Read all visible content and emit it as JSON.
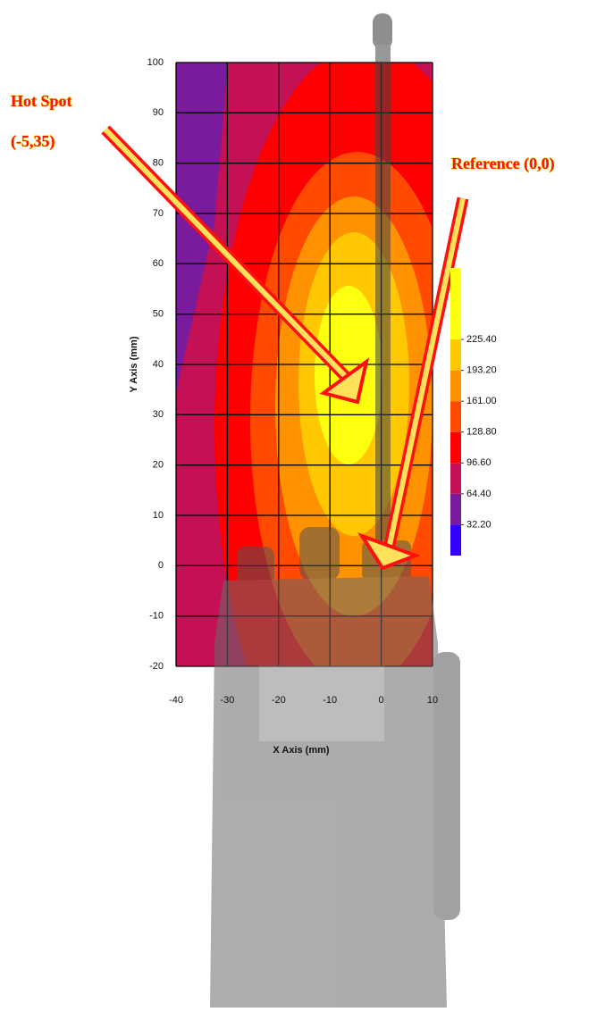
{
  "chart_data": {
    "type": "contour",
    "x_label": "X Axis (mm)",
    "y_label": "Y Axis (mm)",
    "xlim": [
      -40,
      10
    ],
    "xticks": [
      -40,
      -30,
      -20,
      -10,
      0,
      10
    ],
    "ylim": [
      -20,
      100
    ],
    "yticks": [
      -20,
      -10,
      0,
      10,
      20,
      30,
      40,
      50,
      60,
      70,
      80,
      90,
      100
    ],
    "grid": true,
    "colorbar": {
      "lim": [
        0,
        300
      ],
      "ticks": [
        {
          "value": 32.2,
          "label": "32.20"
        },
        {
          "value": 64.4,
          "label": "64.40"
        },
        {
          "value": 96.6,
          "label": "96.60"
        },
        {
          "value": 128.8,
          "label": "128.80"
        },
        {
          "value": 161,
          "label": "161.00"
        },
        {
          "value": 193.2,
          "label": "193.20"
        },
        {
          "value": 225.4,
          "label": "225.40"
        }
      ],
      "colors": [
        "#3300ff",
        "#7a1a9c",
        "#c41054",
        "#ff0000",
        "#ff4a00",
        "#ff9200",
        "#ffc800",
        "#ffff10"
      ]
    },
    "annotations": [
      "Hot Spot",
      "(-5,35)",
      "Reference (0,0)"
    ]
  }
}
